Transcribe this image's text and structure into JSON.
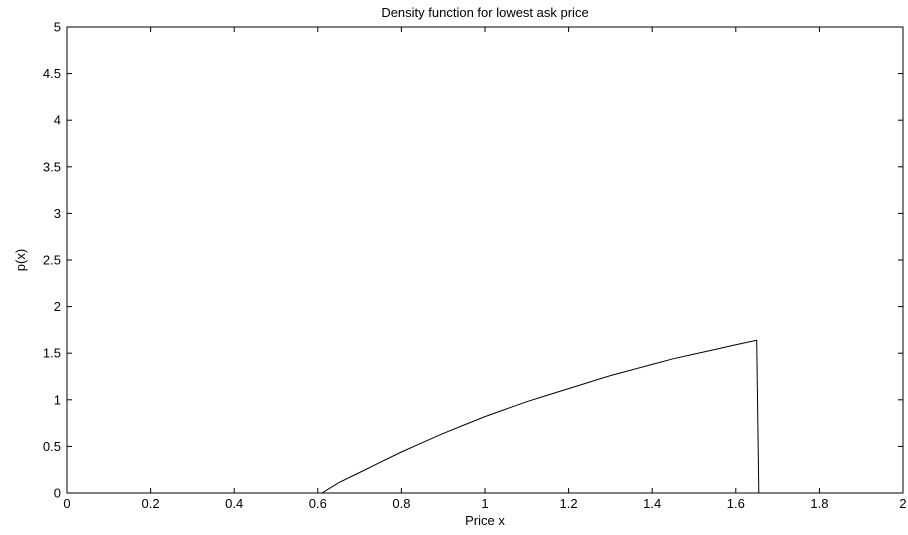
{
  "chart_data": {
    "type": "line",
    "title": "Density function for lowest ask price",
    "xlabel": "Price x",
    "ylabel": "p(x)",
    "xlim": [
      0,
      2
    ],
    "ylim": [
      0,
      5
    ],
    "xticks": [
      0,
      0.2,
      0.4,
      0.6,
      0.8,
      1,
      1.2,
      1.4,
      1.6,
      1.8,
      2
    ],
    "xtick_labels": [
      "0",
      "0.2",
      "0.4",
      "0.6",
      "0.8",
      "1",
      "1.2",
      "1.4",
      "1.6",
      "1.8",
      "2"
    ],
    "yticks": [
      0,
      0.5,
      1,
      1.5,
      2,
      2.5,
      3,
      3.5,
      4,
      4.5,
      5
    ],
    "ytick_labels": [
      "0",
      "0.5",
      "1",
      "1.5",
      "2",
      "2.5",
      "3",
      "3.5",
      "4",
      "4.5",
      "5"
    ],
    "grid": false,
    "line_color": "#000000",
    "series": [
      {
        "x": [
          0,
          0.61,
          0.65,
          0.7,
          0.75,
          0.8,
          0.85,
          0.9,
          0.95,
          1.0,
          1.05,
          1.1,
          1.15,
          1.2,
          1.25,
          1.3,
          1.35,
          1.4,
          1.45,
          1.5,
          1.55,
          1.6,
          1.65,
          1.655,
          2
        ],
        "y": [
          0,
          0,
          0.11,
          0.22,
          0.33,
          0.44,
          0.54,
          0.64,
          0.73,
          0.82,
          0.9,
          0.98,
          1.05,
          1.12,
          1.19,
          1.26,
          1.32,
          1.38,
          1.44,
          1.49,
          1.54,
          1.59,
          1.64,
          0,
          0
        ]
      }
    ]
  }
}
